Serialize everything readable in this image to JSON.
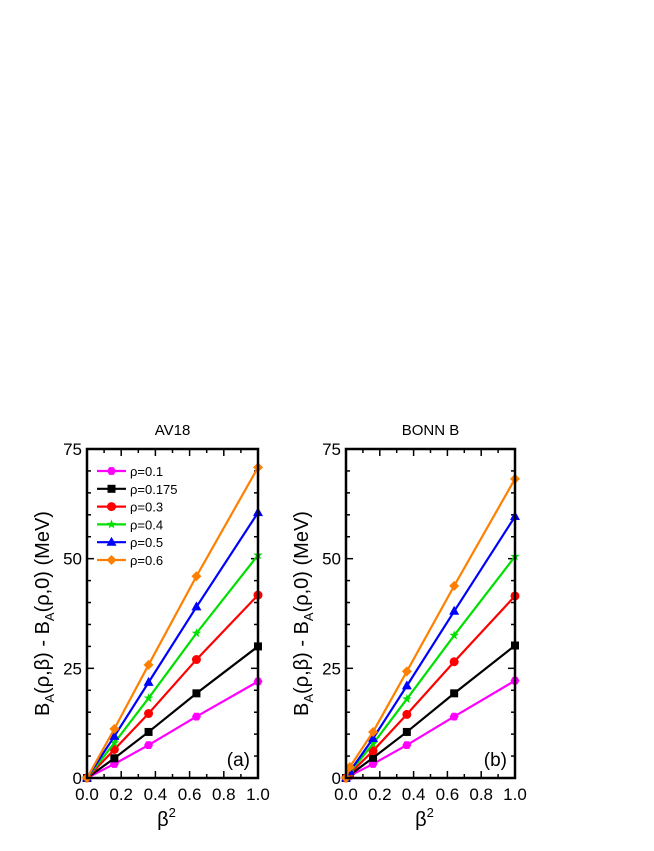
{
  "chart_data": [
    {
      "type": "line",
      "title": "AV18",
      "panel_label": "(a)",
      "xlabel": "β2",
      "ylabel": "B_A(ρ,β) - B_A(ρ,0) (MeV)",
      "xlim": [
        0,
        1
      ],
      "ylim": [
        0,
        75
      ],
      "xticks": [
        "0.0",
        "0.2",
        "0.4",
        "0.6",
        "0.8",
        "1.0"
      ],
      "yticks": [
        "0",
        "25",
        "50",
        "75"
      ],
      "legend": "top-left",
      "x": [
        0,
        0.16,
        0.36,
        0.64,
        1.0
      ],
      "series": [
        {
          "name": "ρ=0.1",
          "color": "#ff00ff",
          "marker": "pentagon",
          "values": [
            0,
            3.2,
            7.5,
            14,
            22
          ]
        },
        {
          "name": "ρ=0.175",
          "color": "#000000",
          "marker": "square",
          "values": [
            0,
            4.5,
            10.5,
            19.3,
            30
          ]
        },
        {
          "name": "ρ=0.3",
          "color": "#ff0000",
          "marker": "circle",
          "values": [
            0,
            6.5,
            14.7,
            27,
            41.7
          ]
        },
        {
          "name": "ρ=0.4",
          "color": "#00e000",
          "marker": "star",
          "values": [
            0,
            8,
            18.2,
            33,
            50.8
          ]
        },
        {
          "name": "ρ=0.5",
          "color": "#0000ff",
          "marker": "triangle",
          "values": [
            0,
            9.5,
            21.8,
            39,
            60.5
          ]
        },
        {
          "name": "ρ=0.6",
          "color": "#ff8000",
          "marker": "diamond",
          "values": [
            0,
            11.2,
            25.8,
            46,
            70.8
          ]
        }
      ]
    },
    {
      "type": "line",
      "title": "BONN B",
      "panel_label": "(b)",
      "xlabel": "β2",
      "ylabel": "B_A(ρ,β) - B_A(ρ,0) (MeV)",
      "xlim": [
        0,
        1
      ],
      "ylim": [
        0,
        75
      ],
      "xticks": [
        "0.0",
        "0.2",
        "0.4",
        "0.6",
        "0.8",
        "1.0"
      ],
      "yticks": [
        "0",
        "25",
        "50",
        "75"
      ],
      "x": [
        0,
        0.0225,
        0.16,
        0.36,
        0.64,
        1.0
      ],
      "series": [
        {
          "color": "#ff00ff",
          "marker": "pentagon",
          "values": [
            0,
            0.5,
            3.2,
            7.5,
            14,
            22.2
          ]
        },
        {
          "color": "#000000",
          "marker": "square",
          "values": [
            0,
            0.7,
            4.6,
            10.5,
            19.3,
            30.2
          ]
        },
        {
          "color": "#ff0000",
          "marker": "circle",
          "values": [
            0,
            1,
            6.2,
            14.5,
            26.5,
            41.5
          ]
        },
        {
          "color": "#00e000",
          "marker": "star",
          "values": [
            0,
            1.3,
            7.8,
            18,
            32.5,
            50.5
          ]
        },
        {
          "color": "#0000ff",
          "marker": "triangle",
          "values": [
            0,
            1.5,
            9,
            21,
            38,
            59.6
          ]
        },
        {
          "color": "#ff8000",
          "marker": "diamond",
          "values": [
            0,
            2.5,
            10.5,
            24.3,
            43.8,
            68.2
          ]
        }
      ]
    }
  ]
}
